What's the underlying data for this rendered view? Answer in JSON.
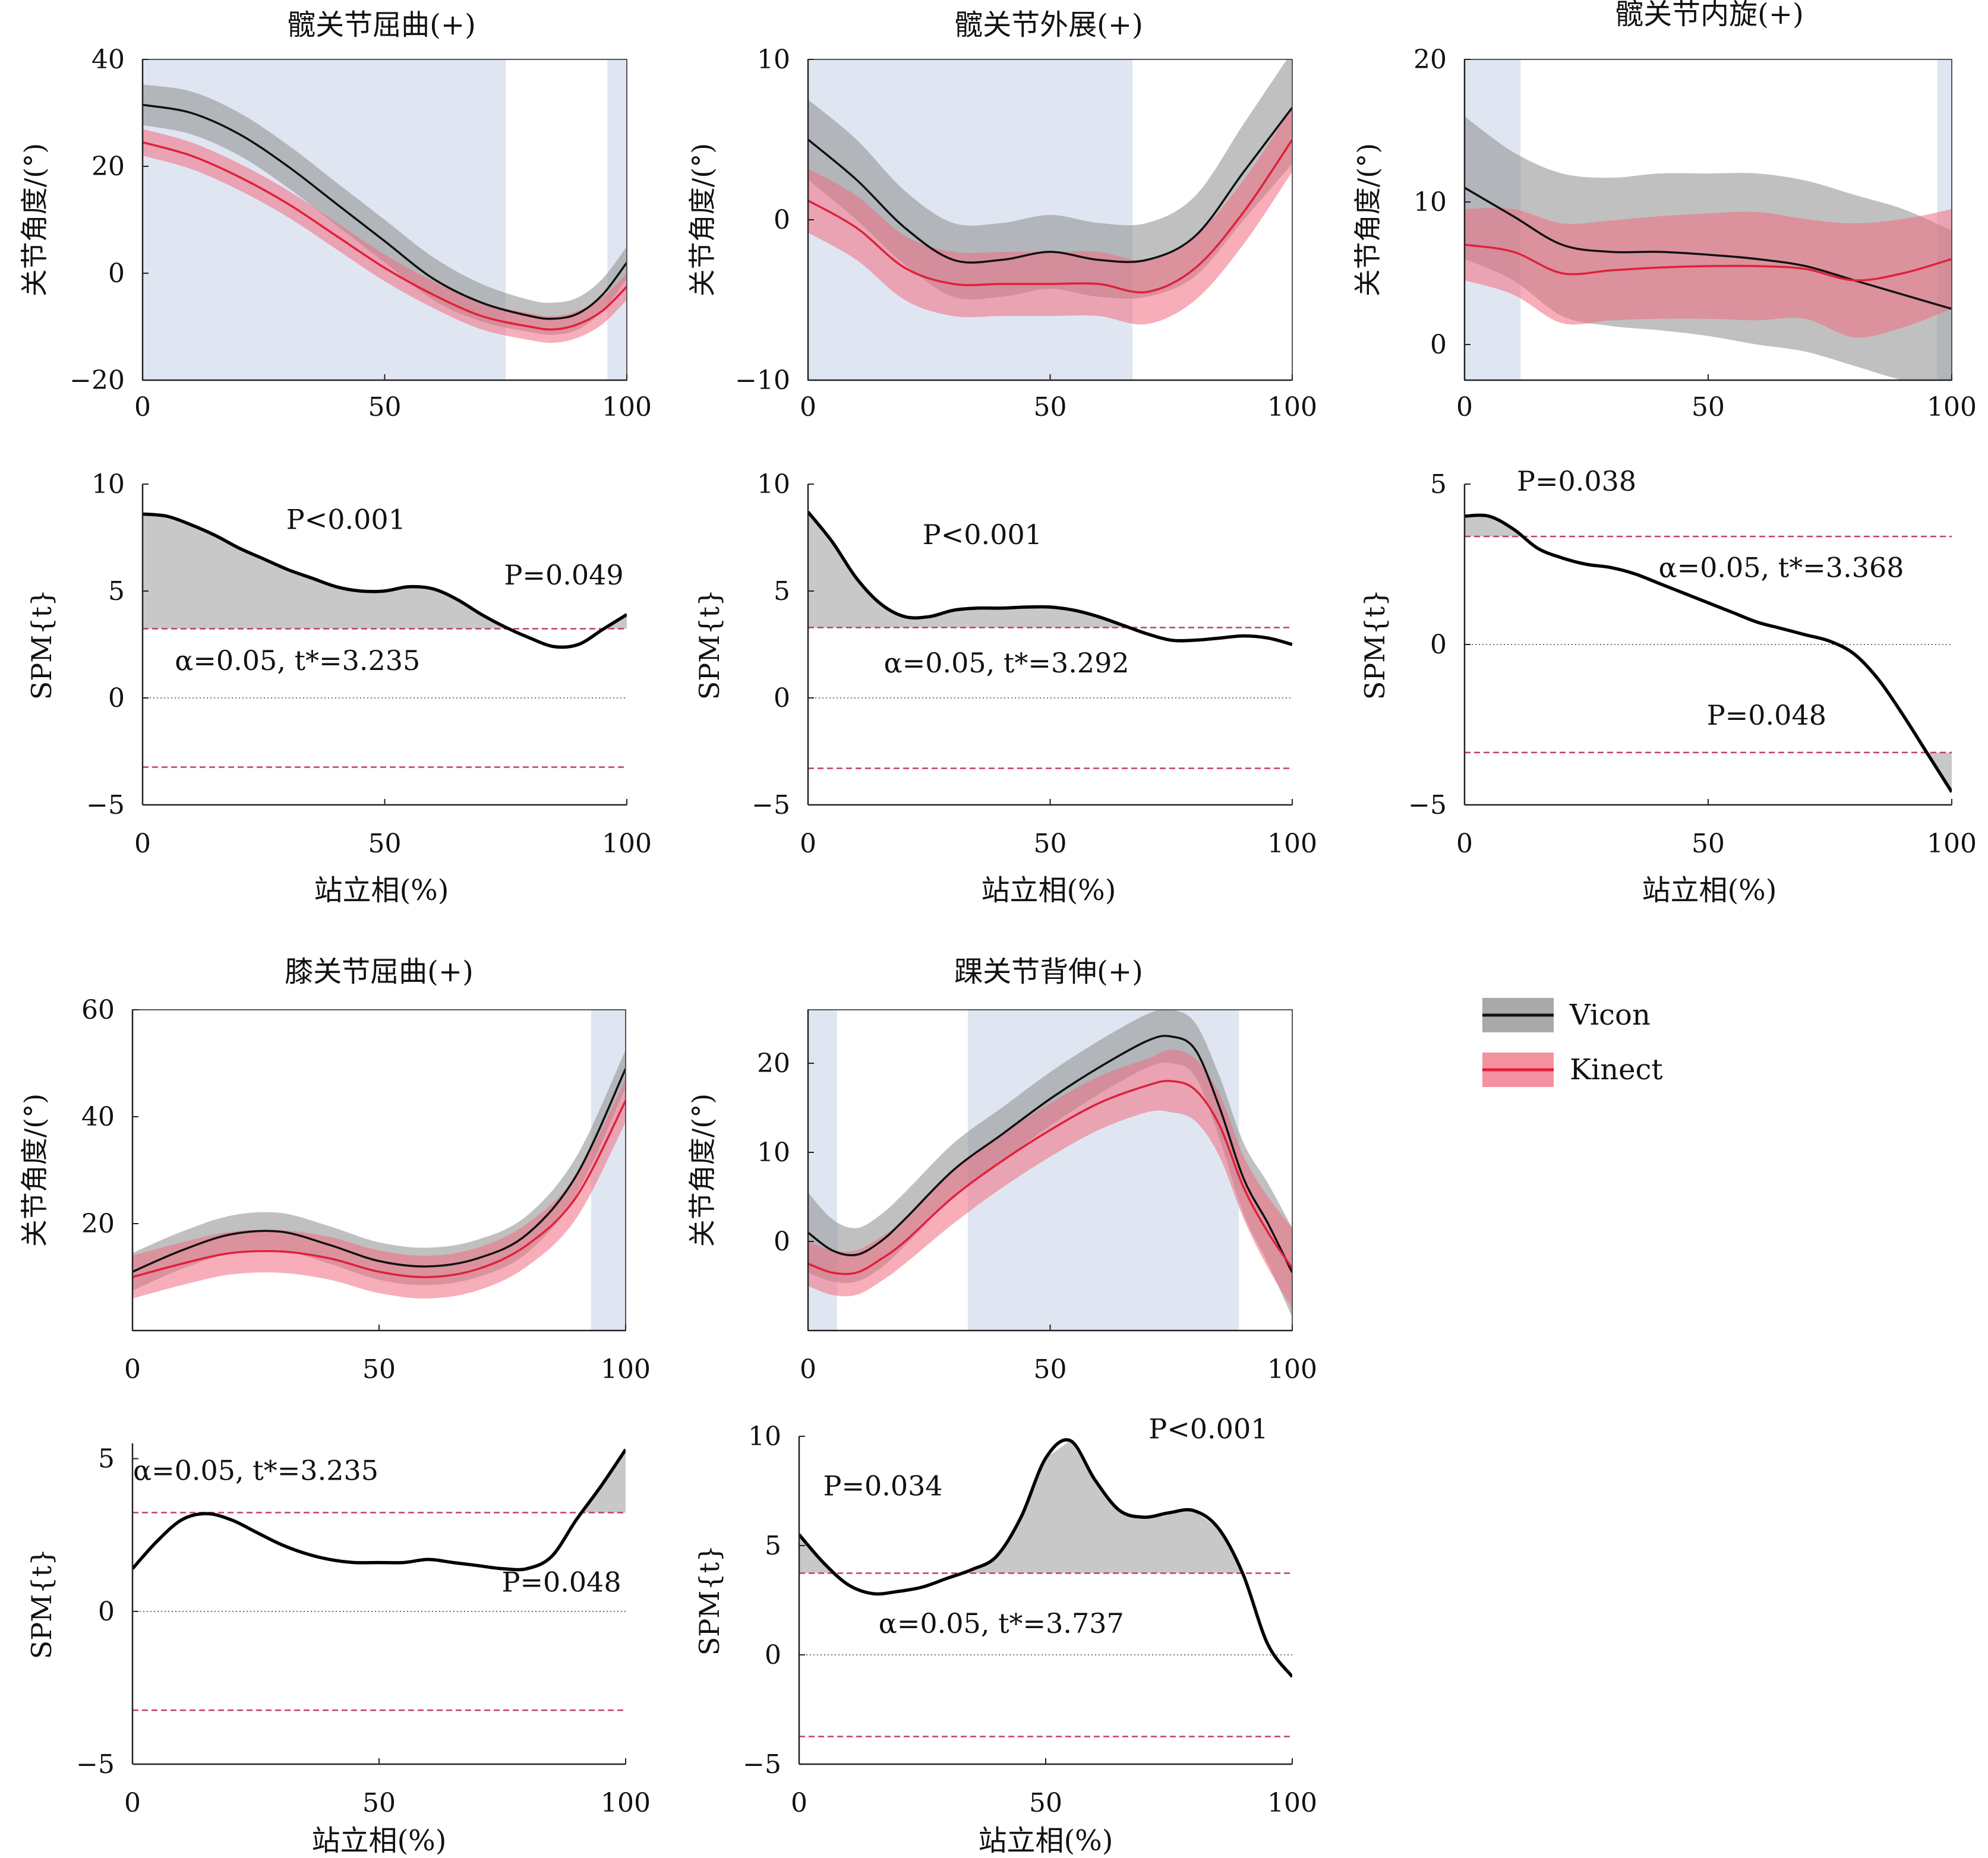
{
  "colors": {
    "vicon_line": "#111111",
    "vicon_band": "#8c8c8c",
    "kinect_line": "#e0203a",
    "kinect_band": "#f06c80",
    "sig_shade": "#c9d6ea",
    "threshold": "#c0405e",
    "spm_fill": "#c8c8c8"
  },
  "legend": [
    {
      "label": "Vicon",
      "series": "vicon"
    },
    {
      "label": "Kinect",
      "series": "kinect"
    }
  ],
  "xlabel": "站立相(%)",
  "angle_ylabel": "关节角度/(°)",
  "spm_ylabel": "SPM{t}",
  "chart_data": [
    {
      "id": "hip-flexion",
      "title": "髋关节屈曲(+)",
      "type": "line",
      "x_range": [
        0,
        100
      ],
      "ylim": [
        -20,
        40
      ],
      "yticks": [
        -20,
        0,
        20,
        40
      ],
      "xticks": [
        0,
        50,
        100
      ],
      "x": [
        0,
        10,
        20,
        30,
        40,
        50,
        60,
        70,
        80,
        85,
        90,
        95,
        100
      ],
      "series": [
        {
          "name": "Vicon",
          "mean": [
            31.5,
            30,
            26,
            20,
            13,
            6,
            -1,
            -5.5,
            -8,
            -8.5,
            -7.5,
            -4,
            2
          ],
          "sd": [
            3.8,
            4,
            4,
            4,
            4,
            4,
            4,
            3.5,
            3,
            3,
            3,
            3,
            3
          ]
        },
        {
          "name": "Kinect",
          "mean": [
            24.5,
            22,
            18,
            13,
            7,
            1,
            -4,
            -8,
            -10,
            -10.5,
            -9.5,
            -7,
            -2.5
          ],
          "sd": [
            2.5,
            2.5,
            2.5,
            2.5,
            2.5,
            2.5,
            2.5,
            2.5,
            2.5,
            2.5,
            2.5,
            2.5,
            2.5
          ]
        }
      ],
      "significant_regions": [
        [
          0,
          75
        ],
        [
          96,
          100
        ]
      ]
    },
    {
      "id": "hip-abduction",
      "title": "髋关节外展(+)",
      "type": "line",
      "x_range": [
        0,
        100
      ],
      "ylim": [
        -10,
        10
      ],
      "yticks": [
        -10,
        0,
        10
      ],
      "xticks": [
        0,
        50,
        100
      ],
      "x": [
        0,
        10,
        20,
        30,
        40,
        50,
        60,
        70,
        80,
        90,
        100
      ],
      "series": [
        {
          "name": "Vicon",
          "mean": [
            5,
            2.5,
            -0.5,
            -2.5,
            -2.5,
            -2,
            -2.5,
            -2.5,
            -1,
            3,
            7
          ],
          "sd": [
            2.5,
            2.5,
            2.3,
            2.3,
            2.3,
            2.3,
            2.3,
            2.3,
            2.5,
            3,
            3.5
          ]
        },
        {
          "name": "Kinect",
          "mean": [
            1.2,
            -0.5,
            -3,
            -4,
            -4,
            -4,
            -4,
            -4.5,
            -3,
            0.5,
            5
          ],
          "sd": [
            2,
            2,
            2,
            2,
            2,
            2,
            2,
            2,
            2,
            2,
            2
          ]
        }
      ],
      "significant_regions": [
        [
          0,
          67
        ]
      ]
    },
    {
      "id": "hip-internal-rotation",
      "title": "髋关节内旋(+)",
      "type": "line",
      "x_range": [
        0,
        100
      ],
      "ylim": [
        -2.5,
        20
      ],
      "yticks": [
        0,
        10,
        20
      ],
      "xticks": [
        0,
        50,
        100
      ],
      "x": [
        0,
        10,
        20,
        30,
        40,
        50,
        60,
        70,
        80,
        90,
        100
      ],
      "series": [
        {
          "name": "Vicon",
          "mean": [
            11,
            9,
            7,
            6.5,
            6.5,
            6.3,
            6,
            5.5,
            4.5,
            3.5,
            2.5
          ],
          "sd": [
            5,
            4.5,
            5,
            5.2,
            5.5,
            5.7,
            6,
            6,
            6,
            6,
            5.5
          ]
        },
        {
          "name": "Kinect",
          "mean": [
            7,
            6.5,
            5,
            5.2,
            5.4,
            5.5,
            5.5,
            5.3,
            4.5,
            5,
            6
          ],
          "sd": [
            2.5,
            3,
            3.5,
            3.5,
            3.6,
            3.7,
            3.8,
            3.5,
            4,
            3.8,
            3.5
          ]
        }
      ],
      "significant_regions": [
        [
          0,
          11.5
        ],
        [
          97,
          100
        ]
      ]
    },
    {
      "id": "knee-flexion",
      "title": "膝关节屈曲(+)",
      "type": "line",
      "x_range": [
        0,
        100
      ],
      "ylim": [
        0,
        60
      ],
      "yticks": [
        20,
        40,
        60
      ],
      "xticks": [
        0,
        50,
        100
      ],
      "x": [
        0,
        10,
        20,
        30,
        40,
        50,
        60,
        70,
        80,
        90,
        100
      ],
      "series": [
        {
          "name": "Vicon",
          "mean": [
            11,
            15,
            18,
            18.5,
            16,
            13,
            12,
            13.5,
            18,
            29,
            49
          ],
          "sd": [
            3.5,
            3.5,
            3.5,
            3.5,
            3.5,
            3.5,
            3.5,
            3.5,
            3.5,
            3.5,
            3.5
          ]
        },
        {
          "name": "Kinect",
          "mean": [
            10,
            12.5,
            14.5,
            14.8,
            13.5,
            11,
            10,
            11.5,
            16,
            25,
            43
          ],
          "sd": [
            4,
            4,
            4,
            4,
            4,
            4,
            4,
            4,
            4,
            4,
            4
          ]
        }
      ],
      "significant_regions": [
        [
          93,
          100
        ]
      ]
    },
    {
      "id": "ankle-dorsiflexion",
      "title": "踝关节背伸(+)",
      "type": "line",
      "x_range": [
        0,
        100
      ],
      "ylim": [
        -10,
        26
      ],
      "yticks": [
        0,
        10,
        20
      ],
      "xticks": [
        0,
        50,
        100
      ],
      "x": [
        0,
        5,
        10,
        15,
        20,
        30,
        40,
        50,
        60,
        70,
        75,
        80,
        85,
        90,
        95,
        100
      ],
      "series": [
        {
          "name": "Vicon",
          "mean": [
            1,
            -1,
            -1.5,
            0,
            2.5,
            8,
            12,
            16,
            19.5,
            22.5,
            23,
            21.5,
            15,
            7,
            2,
            -3.5
          ],
          "sd": [
            4.5,
            3.5,
            3,
            3,
            3,
            3,
            3,
            3,
            3,
            3,
            3,
            3,
            3.5,
            4,
            4.5,
            5
          ]
        },
        {
          "name": "Kinect",
          "mean": [
            -2.5,
            -3.5,
            -3.5,
            -2,
            0,
            5,
            9,
            12.5,
            15.5,
            17.5,
            18,
            17,
            13,
            6,
            1,
            -3
          ],
          "sd": [
            2.5,
            2.5,
            2.5,
            2.5,
            2.5,
            3,
            3,
            3,
            3,
            3,
            3.5,
            3.5,
            3.5,
            3.5,
            4,
            4.5
          ]
        }
      ],
      "significant_regions": [
        [
          0,
          6
        ],
        [
          33,
          89
        ]
      ]
    },
    {
      "id": "hip-flexion-spm",
      "type": "line",
      "x_range": [
        0,
        100
      ],
      "ylim": [
        -5,
        10
      ],
      "yticks": [
        -5,
        0,
        5,
        10
      ],
      "xticks": [
        0,
        50,
        100
      ],
      "threshold": 3.235,
      "x": [
        0,
        5,
        10,
        15,
        20,
        25,
        30,
        35,
        40,
        45,
        50,
        55,
        60,
        65,
        70,
        75,
        80,
        85,
        90,
        95,
        100
      ],
      "t": [
        8.6,
        8.5,
        8.1,
        7.6,
        7.0,
        6.5,
        6.0,
        5.6,
        5.2,
        5.0,
        5.0,
        5.2,
        5.1,
        4.6,
        3.9,
        3.3,
        2.8,
        2.4,
        2.5,
        3.2,
        3.9
      ],
      "annotations": [
        {
          "text": "P<0.001",
          "x": 42,
          "y": 7.9
        },
        {
          "text": "P=0.049",
          "x": 87,
          "y": 5.3
        },
        {
          "text": "α=0.05, t*=3.235",
          "x": 32,
          "y": 1.3
        }
      ]
    },
    {
      "id": "hip-abduction-spm",
      "type": "line",
      "x_range": [
        0,
        100
      ],
      "ylim": [
        -5,
        10
      ],
      "yticks": [
        -5,
        0,
        5,
        10
      ],
      "xticks": [
        0,
        50,
        100
      ],
      "threshold": 3.292,
      "x": [
        0,
        5,
        10,
        15,
        20,
        25,
        30,
        35,
        40,
        45,
        50,
        55,
        60,
        65,
        70,
        75,
        80,
        85,
        90,
        95,
        100
      ],
      "t": [
        8.7,
        7.3,
        5.6,
        4.4,
        3.8,
        3.8,
        4.1,
        4.2,
        4.2,
        4.25,
        4.25,
        4.1,
        3.8,
        3.4,
        3.0,
        2.7,
        2.7,
        2.8,
        2.9,
        2.8,
        2.5
      ],
      "annotations": [
        {
          "text": "P<0.001",
          "x": 36,
          "y": 7.2
        },
        {
          "text": "α=0.05, t*=3.292",
          "x": 41,
          "y": 1.2
        }
      ]
    },
    {
      "id": "hip-internal-rotation-spm",
      "type": "line",
      "x_range": [
        0,
        100
      ],
      "ylim": [
        -5,
        5
      ],
      "yticks": [
        -5,
        0,
        5
      ],
      "xticks": [
        0,
        50,
        100
      ],
      "threshold": 3.368,
      "x": [
        0,
        5,
        10,
        15,
        20,
        25,
        30,
        35,
        40,
        45,
        50,
        55,
        60,
        65,
        70,
        75,
        80,
        85,
        90,
        95,
        100
      ],
      "t": [
        4.0,
        4.0,
        3.6,
        3.0,
        2.7,
        2.5,
        2.4,
        2.2,
        1.9,
        1.6,
        1.3,
        1.0,
        0.7,
        0.5,
        0.3,
        0.1,
        -0.3,
        -1.1,
        -2.2,
        -3.4,
        -4.6
      ],
      "annotations": [
        {
          "text": "P=0.038",
          "x": 23,
          "y": 4.8
        },
        {
          "text": "α=0.05, t*=3.368",
          "x": 65,
          "y": 2.1
        },
        {
          "text": "P=0.048",
          "x": 62,
          "y": -2.5
        }
      ]
    },
    {
      "id": "knee-flexion-spm",
      "type": "line",
      "x_range": [
        0,
        100
      ],
      "ylim": [
        -5,
        5.5
      ],
      "yticks": [
        -5,
        0,
        5
      ],
      "xticks": [
        0,
        50,
        100
      ],
      "threshold": 3.235,
      "x": [
        0,
        5,
        10,
        15,
        20,
        25,
        30,
        35,
        40,
        45,
        50,
        55,
        60,
        65,
        70,
        75,
        80,
        85,
        90,
        95,
        100
      ],
      "t": [
        1.4,
        2.3,
        3.0,
        3.2,
        3.0,
        2.6,
        2.2,
        1.9,
        1.7,
        1.6,
        1.6,
        1.6,
        1.7,
        1.6,
        1.5,
        1.4,
        1.4,
        1.8,
        3.0,
        4.1,
        5.3
      ],
      "annotations": [
        {
          "text": "α=0.05, t*=3.235",
          "x": 25,
          "y": 4.3
        },
        {
          "text": "P=0.048",
          "x": 87,
          "y": 0.65
        }
      ]
    },
    {
      "id": "ankle-dorsiflexion-spm",
      "type": "line",
      "x_range": [
        0,
        100
      ],
      "ylim": [
        -5,
        10
      ],
      "yticks": [
        -5,
        0,
        5,
        10
      ],
      "xticks": [
        0,
        50,
        100
      ],
      "threshold": 3.737,
      "x": [
        0,
        5,
        10,
        15,
        20,
        25,
        30,
        35,
        40,
        45,
        50,
        55,
        60,
        65,
        70,
        75,
        80,
        85,
        90,
        95,
        100
      ],
      "t": [
        5.5,
        4.2,
        3.2,
        2.8,
        2.9,
        3.1,
        3.5,
        3.9,
        4.5,
        6.3,
        9.0,
        9.8,
        8.0,
        6.6,
        6.3,
        6.5,
        6.6,
        5.8,
        3.7,
        0.5,
        -1.0
      ],
      "annotations": [
        {
          "text": "P=0.034",
          "x": 17,
          "y": 7.3
        },
        {
          "text": "P<0.001",
          "x": 83,
          "y": 9.9
        },
        {
          "text": "α=0.05, t*=3.737",
          "x": 41,
          "y": 1.0
        }
      ]
    }
  ]
}
